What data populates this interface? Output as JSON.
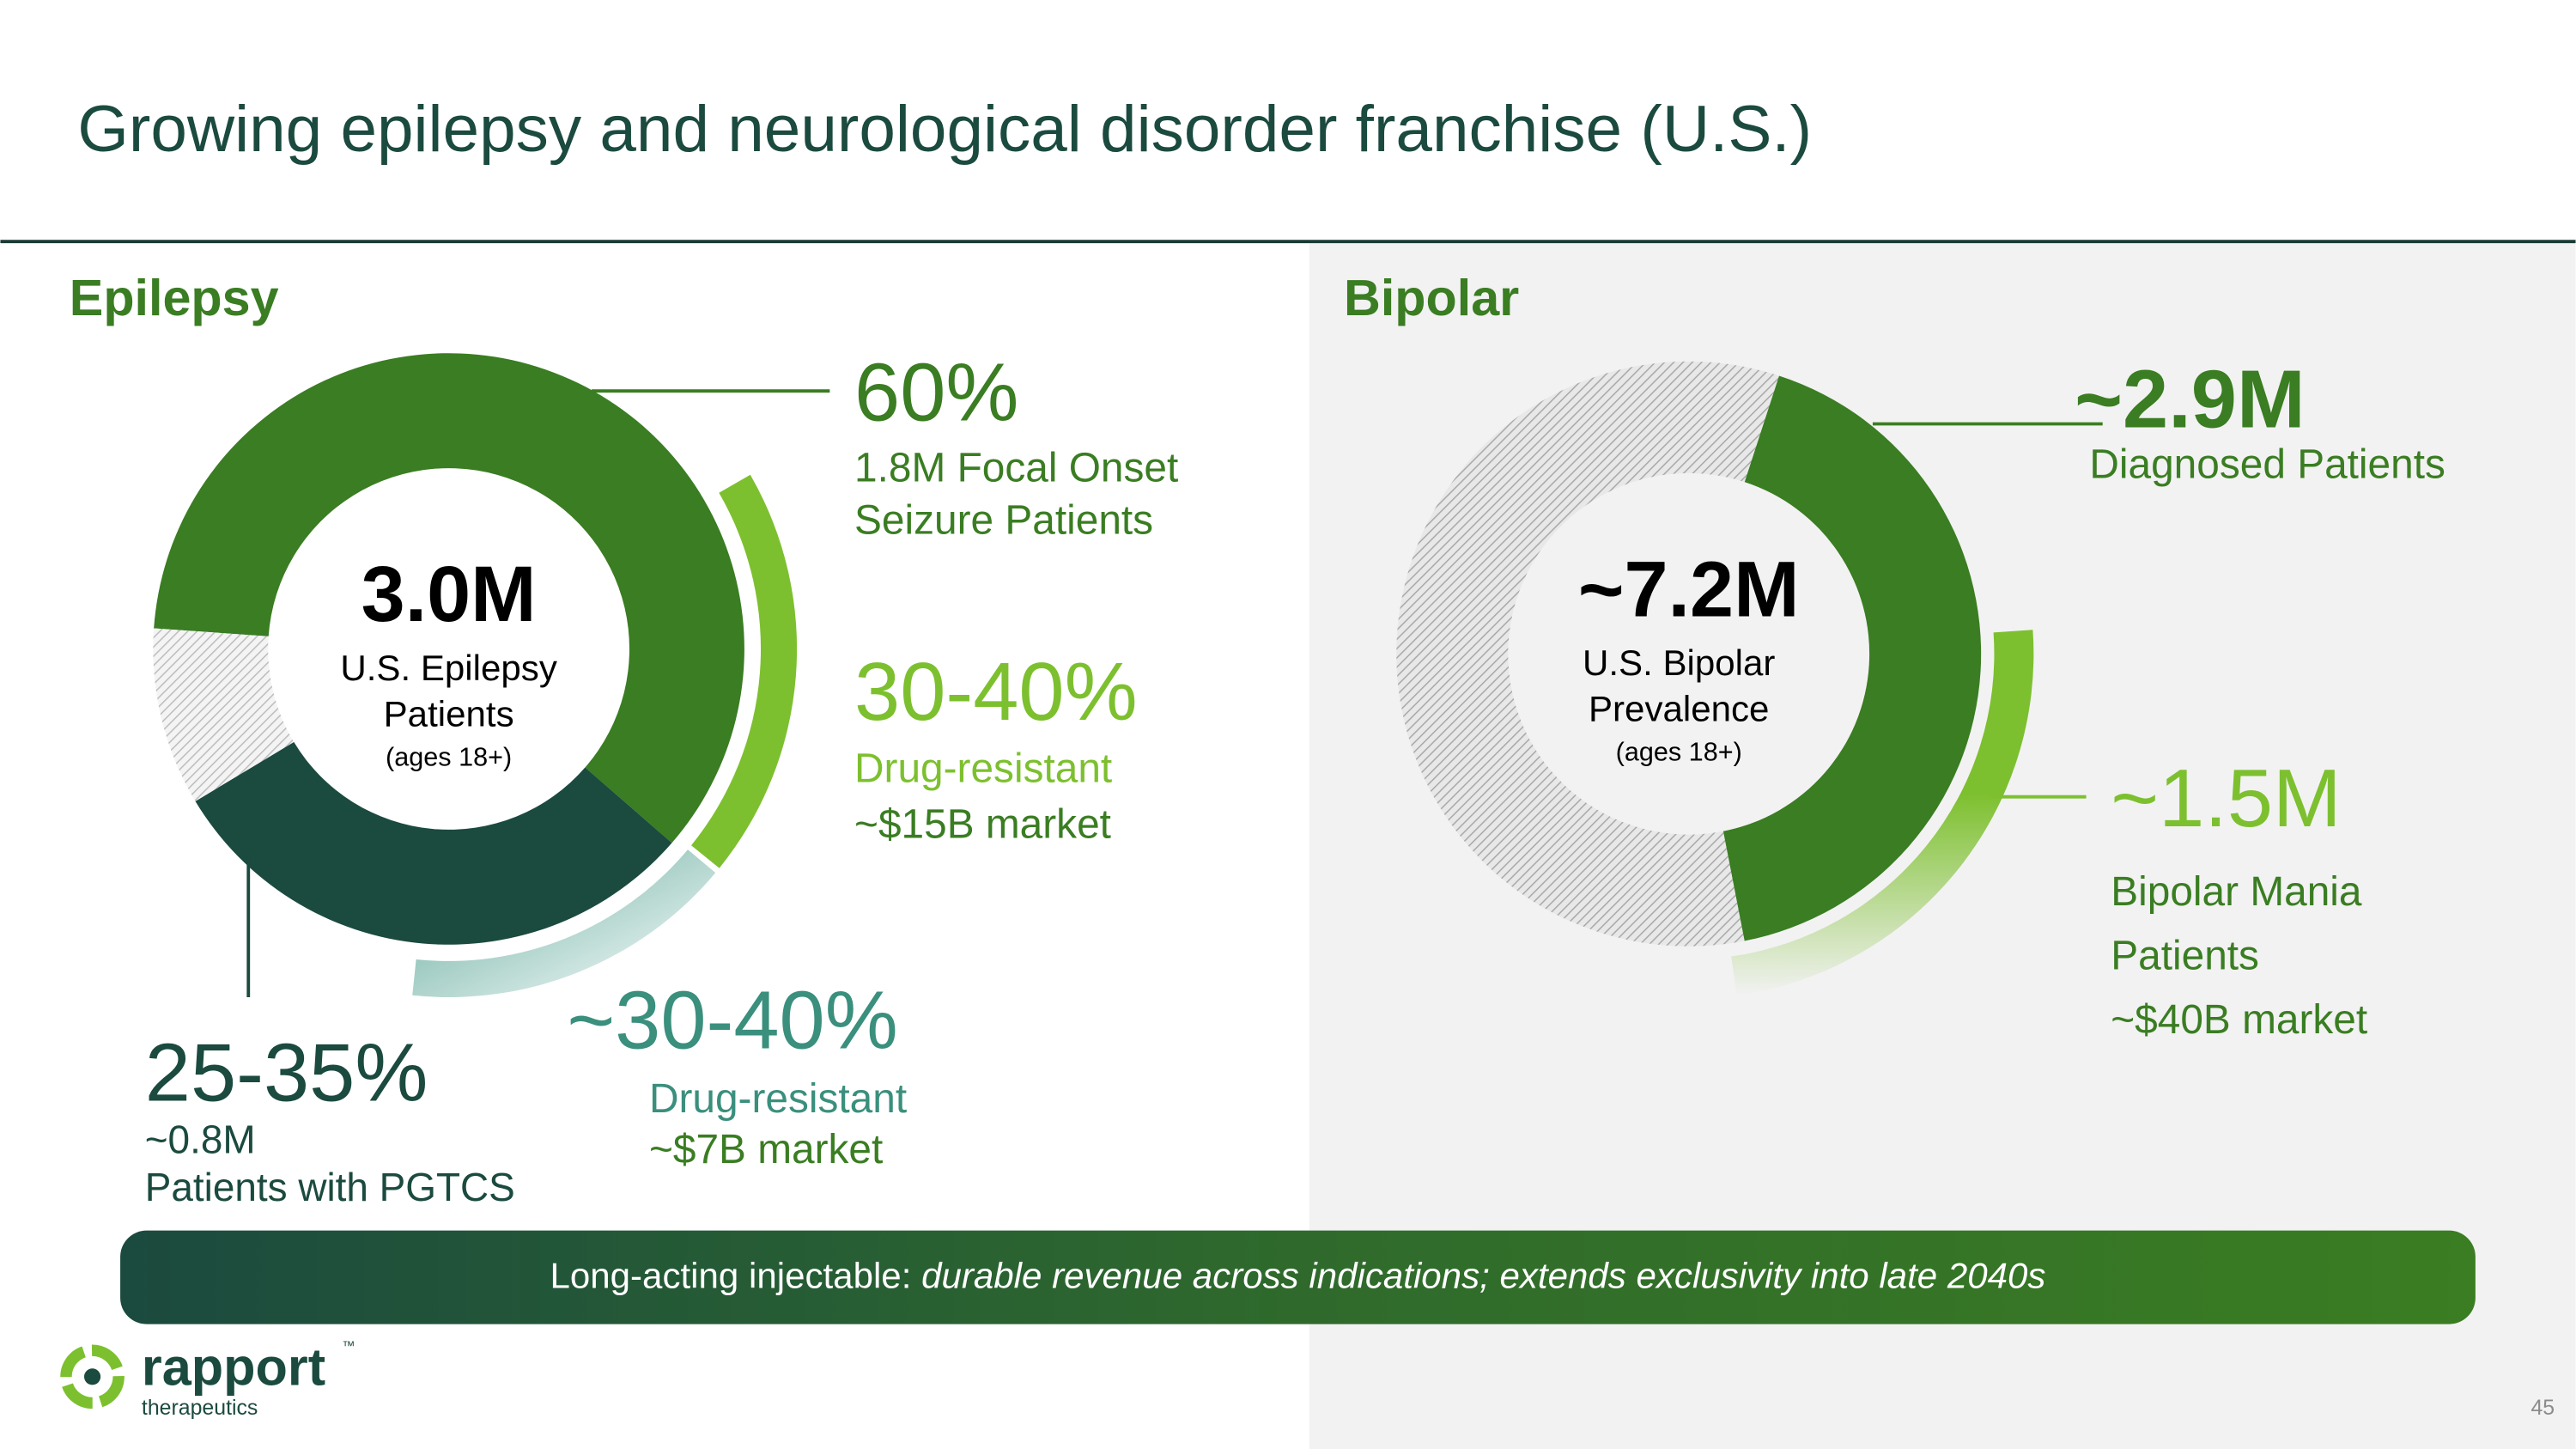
{
  "header": {
    "title": "Growing epilepsy and neurological disorder franchise (U.S.)"
  },
  "epilepsy": {
    "heading": "Epilepsy",
    "center": {
      "value": "3.0M",
      "lines": [
        "U.S. Epilepsy",
        "Patients"
      ],
      "note": "(ages 18+)"
    },
    "focal": {
      "value": "60%",
      "lines": [
        "1.8M Focal Onset",
        "Seizure Patients"
      ]
    },
    "focal_resistant": {
      "value": "30-40%",
      "lines": [
        "Drug-resistant",
        "~$15B market"
      ]
    },
    "pgtcs": {
      "value": "25-35%",
      "lines": [
        "~0.8M",
        "Patients with PGTCS"
      ]
    },
    "pgtcs_resistant": {
      "value": "~30-40%",
      "lines": [
        "Drug-resistant",
        "~$7B market"
      ]
    }
  },
  "bipolar": {
    "heading": "Bipolar",
    "center": {
      "value": "~7.2M",
      "lines": [
        "U.S. Bipolar",
        "Prevalence"
      ],
      "note": "(ages 18+)"
    },
    "diagnosed": {
      "value": "~2.9M",
      "lines": [
        "Diagnosed Patients"
      ]
    },
    "mania": {
      "value": "~1.5M",
      "lines": [
        "Bipolar Mania",
        "Patients",
        "~$40B market"
      ]
    }
  },
  "banner": {
    "lead": "Long-acting injectable: ",
    "emphasis": "durable revenue across indications; extends exclusivity into late 2040s"
  },
  "footer": {
    "logo": "rapport",
    "tm": "™",
    "tagline": "therapeutics",
    "page": "45"
  }
}
